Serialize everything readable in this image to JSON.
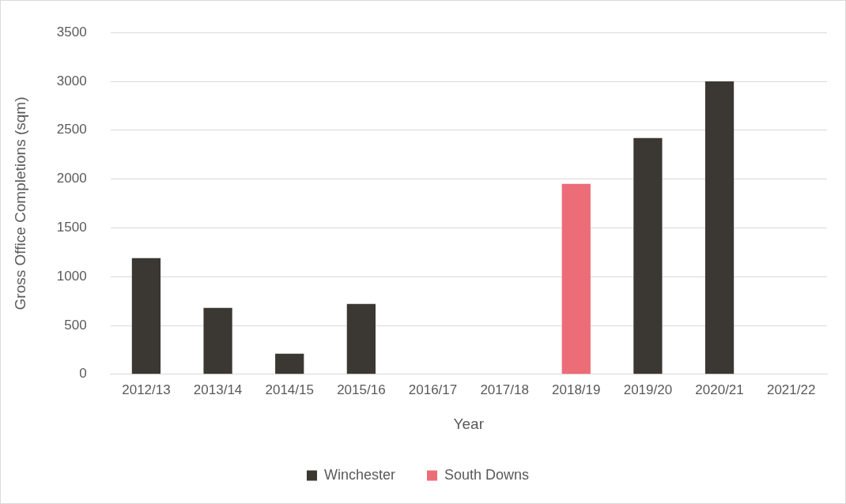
{
  "chart_data": {
    "type": "bar",
    "xlabel": "Year",
    "ylabel": "Gross Office Completions (sqm)",
    "categories": [
      "2012/13",
      "2013/14",
      "2014/15",
      "2015/16",
      "2016/17",
      "2017/18",
      "2018/19",
      "2019/20",
      "2020/21",
      "2021/22"
    ],
    "series": [
      {
        "name": "Winchester",
        "color": "#3b3733",
        "values": [
          1190,
          680,
          210,
          720,
          null,
          null,
          null,
          2420,
          3000,
          null
        ]
      },
      {
        "name": "South Downs",
        "color": "#ec6c78",
        "values": [
          null,
          null,
          null,
          null,
          null,
          null,
          1950,
          null,
          null,
          null
        ]
      }
    ],
    "stacked": true,
    "ylim": [
      0,
      3500
    ],
    "yticks": [
      0,
      500,
      1000,
      1500,
      2000,
      2500,
      3000,
      3500
    ],
    "grid": "y",
    "legend": "bottom"
  }
}
